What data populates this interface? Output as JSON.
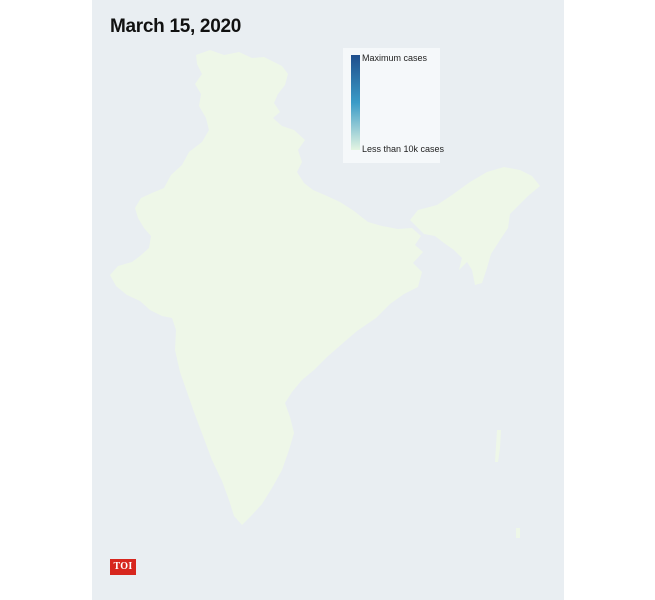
{
  "title": "March 15, 2020",
  "legend": {
    "max_label": "Maximum cases",
    "min_label": "Less than 10k cases",
    "color_max": "#1f4e8c",
    "color_mid": "#3a9bc7",
    "color_min": "#e4f5e2"
  },
  "map": {
    "fill_color": "#eef7e8",
    "background_color": "#e9eef2",
    "current_level": "less than 10k cases"
  },
  "logo": {
    "text": "TOI",
    "color": "#d7261e"
  }
}
